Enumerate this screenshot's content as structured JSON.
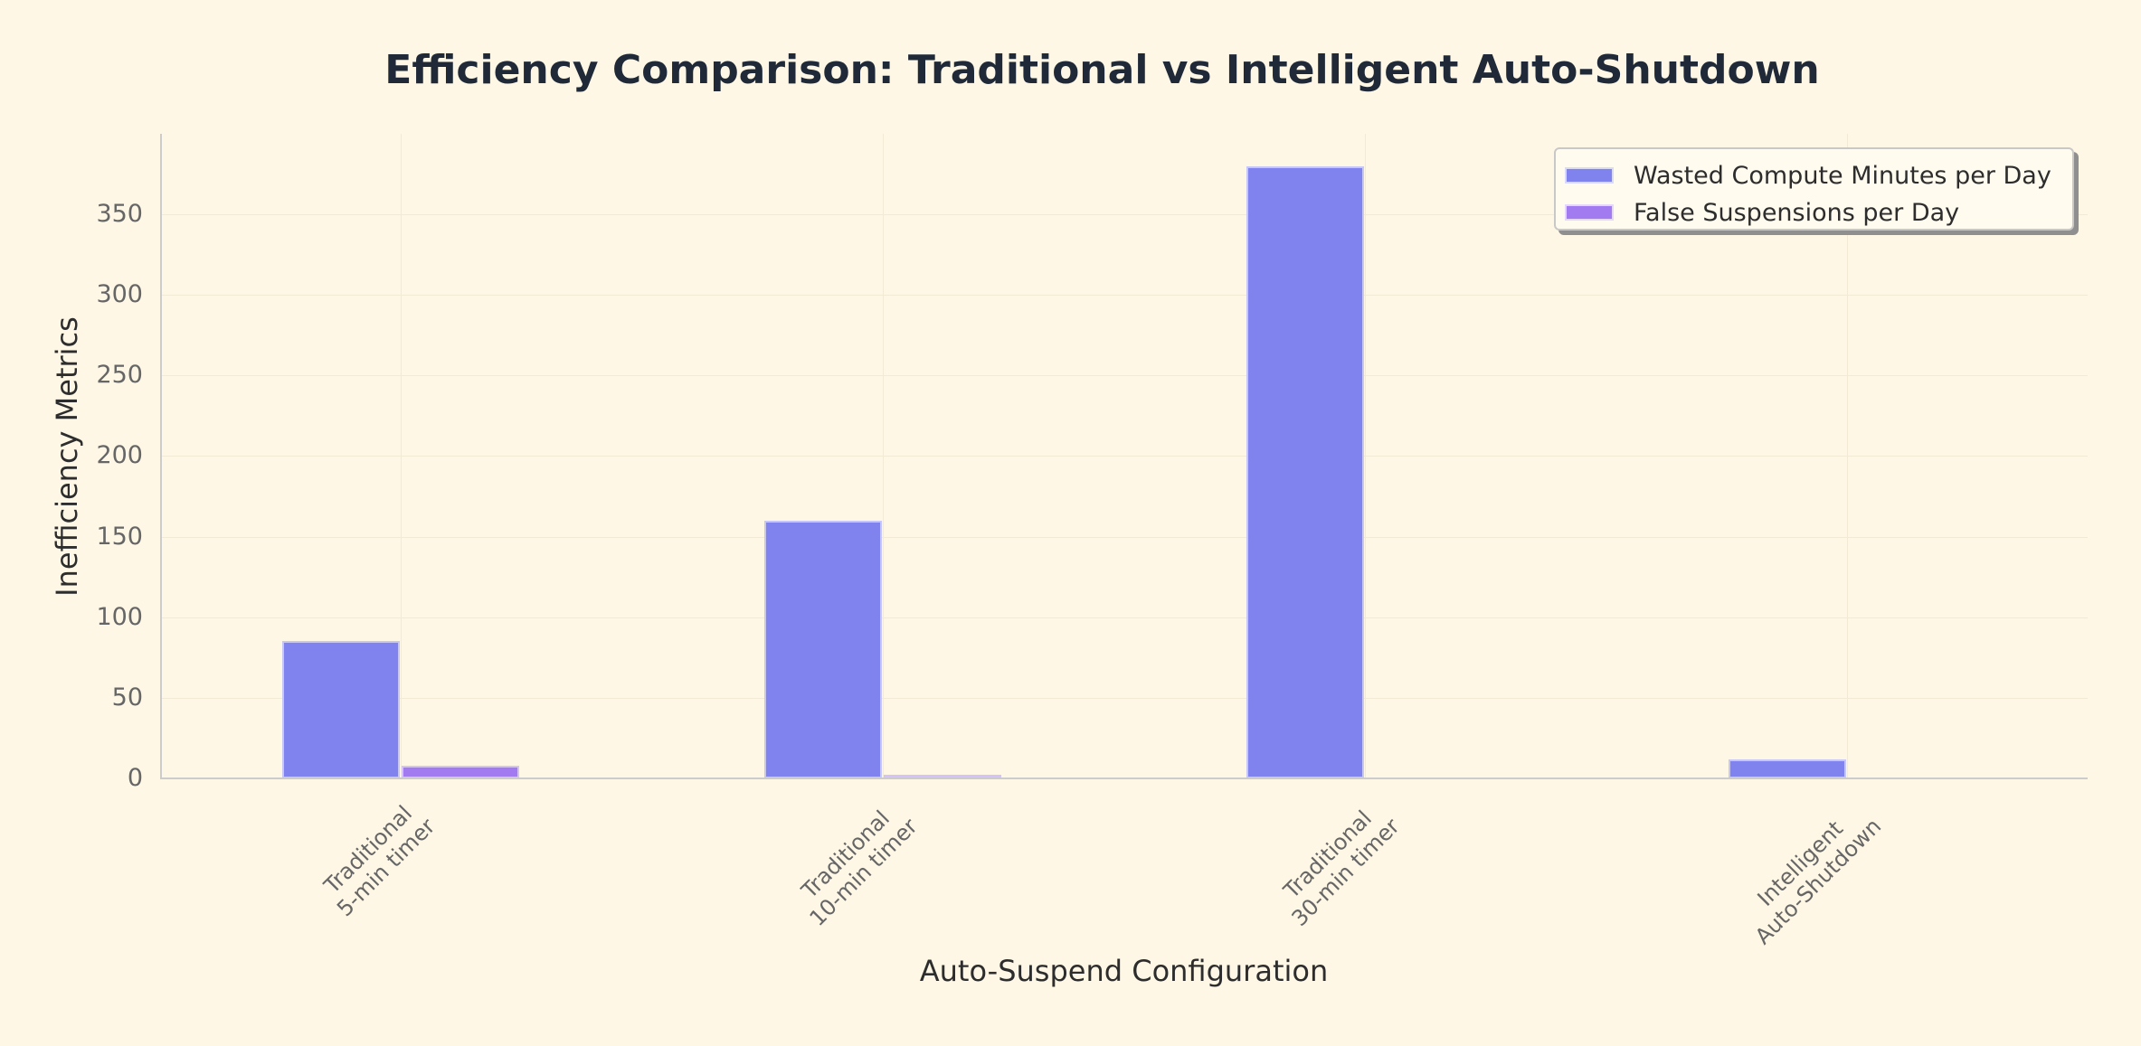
{
  "chart_data": {
    "type": "bar",
    "title": "Efficiency Comparison: Traditional vs Intelligent Auto-Shutdown",
    "xlabel": "Auto-Suspend Configuration",
    "ylabel": "Inefficiency Metrics",
    "categories": [
      "Traditional\n5-min timer",
      "Traditional\n10-min timer",
      "Traditional\n30-min timer",
      "Intelligent\nAuto-Shutdown"
    ],
    "series": [
      {
        "name": "Wasted Compute Minutes per Day",
        "color": "#8083ee",
        "values": [
          85,
          160,
          380,
          12
        ]
      },
      {
        "name": "False Suspensions per Day",
        "color": "#a37bf0",
        "values": [
          8,
          2,
          0,
          0
        ]
      }
    ],
    "ylim": [
      0,
      400
    ],
    "yticks": [
      0,
      50,
      100,
      150,
      200,
      250,
      300,
      350
    ],
    "grid": true,
    "legend_position": "upper right",
    "x_tick_rotation": 45
  },
  "labels": {
    "title": "Efficiency Comparison: Traditional vs Intelligent Auto-Shutdown",
    "xlabel": "Auto-Suspend Configuration",
    "ylabel": "Inefficiency Metrics",
    "xticks": [
      [
        "Traditional",
        "5-min timer"
      ],
      [
        "Traditional",
        "10-min timer"
      ],
      [
        "Traditional",
        "30-min timer"
      ],
      [
        "Intelligent",
        "Auto-Shutdown"
      ]
    ],
    "yticks": [
      "0",
      "50",
      "100",
      "150",
      "200",
      "250",
      "300",
      "350"
    ],
    "legend": [
      "Wasted Compute Minutes per Day",
      "False Suspensions per Day"
    ]
  }
}
